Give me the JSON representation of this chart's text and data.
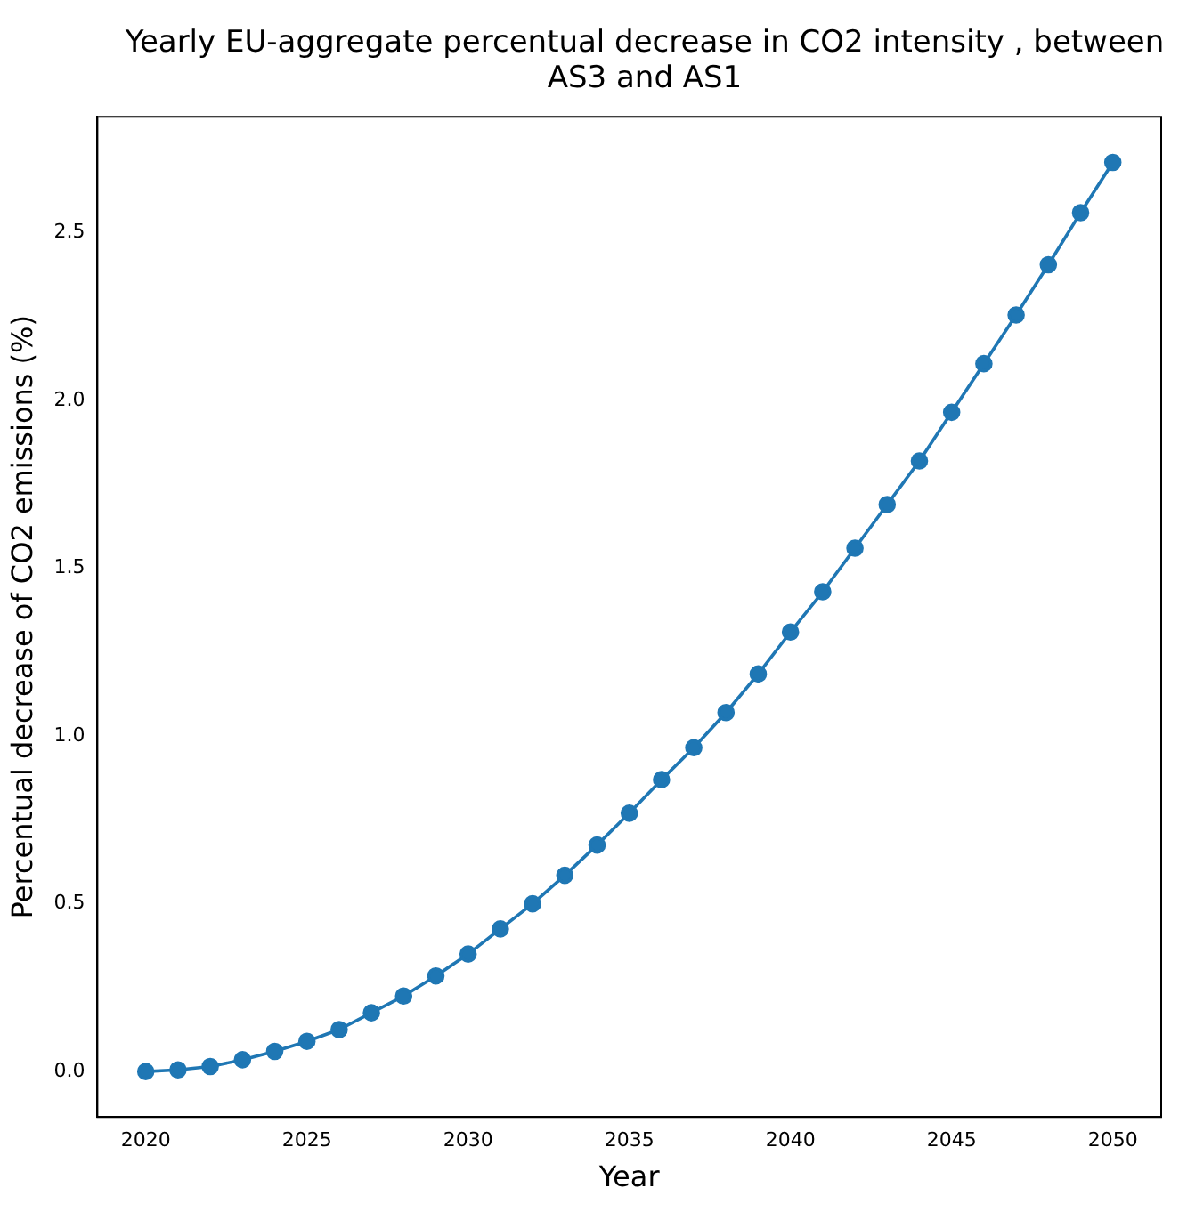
{
  "chart_data": {
    "type": "line",
    "title": "Yearly EU-aggregate percentual decrease in CO2 intensity , between AS3 and AS1",
    "xlabel": "Year",
    "ylabel": "Percentual decrease of CO2 emissions (%)",
    "x": [
      2020,
      2021,
      2022,
      2023,
      2024,
      2025,
      2026,
      2027,
      2028,
      2029,
      2030,
      2031,
      2032,
      2033,
      2034,
      2035,
      2036,
      2037,
      2038,
      2039,
      2040,
      2041,
      2042,
      2043,
      2044,
      2045,
      2046,
      2047,
      2048,
      2049,
      2050
    ],
    "series": [
      {
        "color": "#1f77b4",
        "values": [
          0,
          0.005,
          0.015,
          0.035,
          0.06,
          0.09,
          0.125,
          0.175,
          0.225,
          0.285,
          0.35,
          0.425,
          0.5,
          0.585,
          0.675,
          0.77,
          0.87,
          0.965,
          1.07,
          1.185,
          1.31,
          1.43,
          1.56,
          1.69,
          1.82,
          1.965,
          2.11,
          2.255,
          2.405,
          2.56,
          2.71
        ]
      }
    ],
    "xlim": [
      2018.5,
      2051.5
    ],
    "ylim": [
      -0.1355,
      2.846
    ],
    "xticks": [
      2020,
      2025,
      2030,
      2035,
      2040,
      2045,
      2050
    ],
    "yticks": [
      {
        "value": 0,
        "label": "0.0"
      },
      {
        "value": 0.5,
        "label": "0.5"
      },
      {
        "value": 1,
        "label": "1.0"
      },
      {
        "value": 1.5,
        "label": "1.5"
      },
      {
        "value": 2,
        "label": "2.0"
      },
      {
        "value": 2.5,
        "label": "2.5"
      }
    ],
    "grid": false,
    "marker": "circle",
    "line_style": "solid"
  }
}
